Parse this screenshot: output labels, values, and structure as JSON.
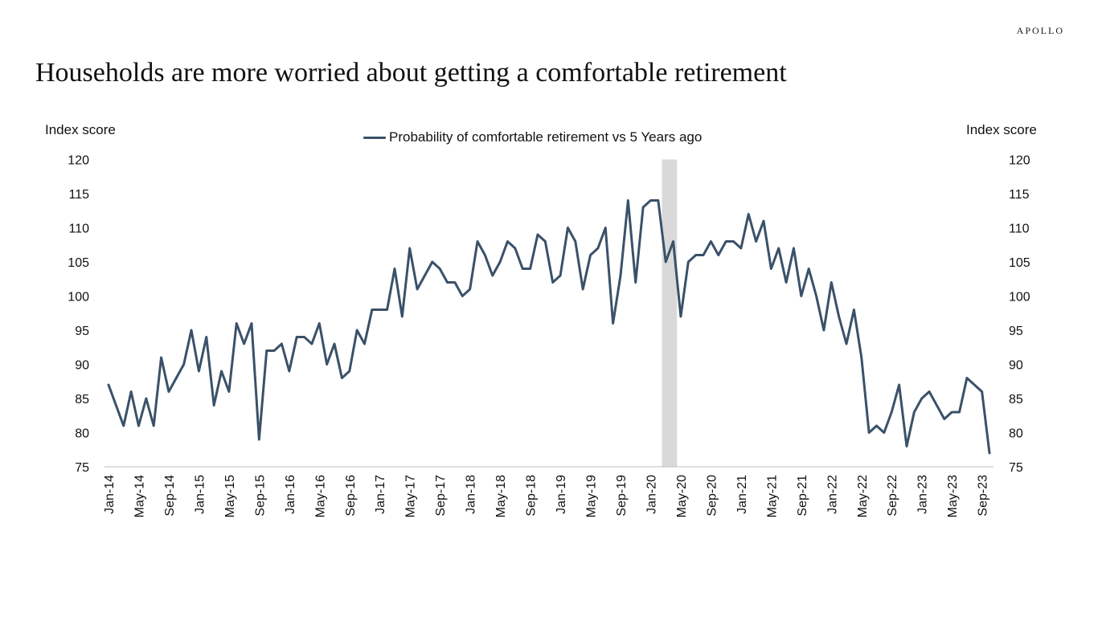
{
  "brand": "APOLLO",
  "title": "Households are more worried about getting a comfortable retirement",
  "chart_data": {
    "type": "line",
    "ylabel_left": "Index score",
    "ylabel_right": "Index score",
    "ylim": [
      75,
      120
    ],
    "yticks": [
      75,
      80,
      85,
      90,
      95,
      100,
      105,
      110,
      115,
      120
    ],
    "xtick_labels": [
      "Jan-14",
      "May-14",
      "Sep-14",
      "Jan-15",
      "May-15",
      "Sep-15",
      "Jan-16",
      "May-16",
      "Sep-16",
      "Jan-17",
      "May-17",
      "Sep-17",
      "Jan-18",
      "May-18",
      "Sep-18",
      "Jan-19",
      "May-19",
      "Sep-19",
      "Jan-20",
      "May-20",
      "Sep-20",
      "Jan-21",
      "May-21",
      "Sep-21",
      "Jan-22",
      "May-22",
      "Sep-22",
      "Jan-23",
      "May-23",
      "Sep-23"
    ],
    "x_start": "Jan-14",
    "x_end": "Oct-23",
    "shaded_period": [
      "Mar-20",
      "Apr-20"
    ],
    "legend_position": "top-center",
    "grid": false,
    "colors": {
      "line": "#3a5169",
      "shade": "#d9d9d9"
    },
    "series": [
      {
        "name": "Probability of comfortable retirement vs 5 Years ago",
        "values": [
          87,
          84,
          81,
          86,
          81,
          85,
          81,
          91,
          86,
          88,
          90,
          95,
          89,
          94,
          84,
          89,
          86,
          96,
          93,
          96,
          79,
          92,
          92,
          93,
          89,
          94,
          94,
          93,
          96,
          90,
          93,
          88,
          89,
          95,
          93,
          98,
          98,
          98,
          104,
          97,
          107,
          101,
          103,
          105,
          104,
          102,
          102,
          100,
          101,
          108,
          106,
          103,
          105,
          108,
          107,
          104,
          104,
          109,
          108,
          102,
          103,
          110,
          108,
          101,
          106,
          107,
          110,
          96,
          103,
          114,
          102,
          113,
          114,
          114,
          105,
          108,
          97,
          105,
          106,
          106,
          108,
          106,
          108,
          108,
          107,
          112,
          108,
          111,
          104,
          107,
          102,
          107,
          100,
          104,
          100,
          95,
          102,
          97,
          93,
          98,
          91,
          80,
          81,
          80,
          83,
          87,
          78,
          83,
          85,
          86,
          84,
          82,
          83,
          83,
          88,
          87,
          86,
          77
        ]
      }
    ]
  }
}
